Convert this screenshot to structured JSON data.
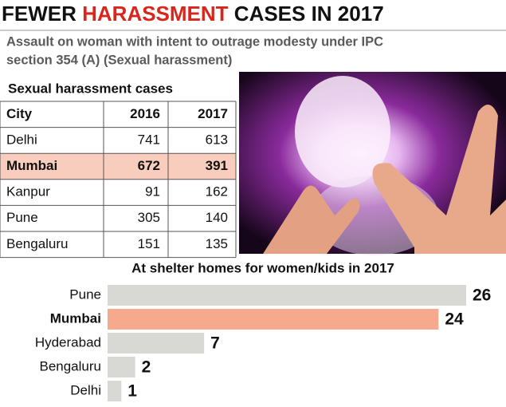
{
  "header": {
    "title": [
      "FEWER ",
      "HARASSMENT",
      " CASES IN 2017"
    ],
    "subtitle": [
      "Assault on woman with intent to outrage modesty under IPC",
      "section 354 (A) (Sexual harassment)"
    ]
  },
  "table": {
    "title": "Sexual harassment cases",
    "columns": [
      "City",
      "2016",
      "2017"
    ],
    "rows": [
      [
        "Delhi",
        "741",
        "613"
      ],
      [
        "Mumbai",
        "672",
        "391"
      ],
      [
        "Kanpur",
        "91",
        "162"
      ],
      [
        "Pune",
        "305",
        "140"
      ],
      [
        "Bengaluru",
        "151",
        "135"
      ]
    ]
  },
  "chart_data": {
    "type": "hbar",
    "title": "At shelter homes for women/kids in 2017",
    "categories": [
      "Pune",
      "Mumbai",
      "Hyderabad",
      "Bengaluru",
      "Delhi"
    ],
    "values": [
      26,
      24,
      7,
      2,
      1
    ],
    "colors": [
      "#d8d8d5",
      "#f6a98c",
      "#d8d8d5",
      "#d8d8d5",
      "#d8d8d5"
    ]
  }
}
